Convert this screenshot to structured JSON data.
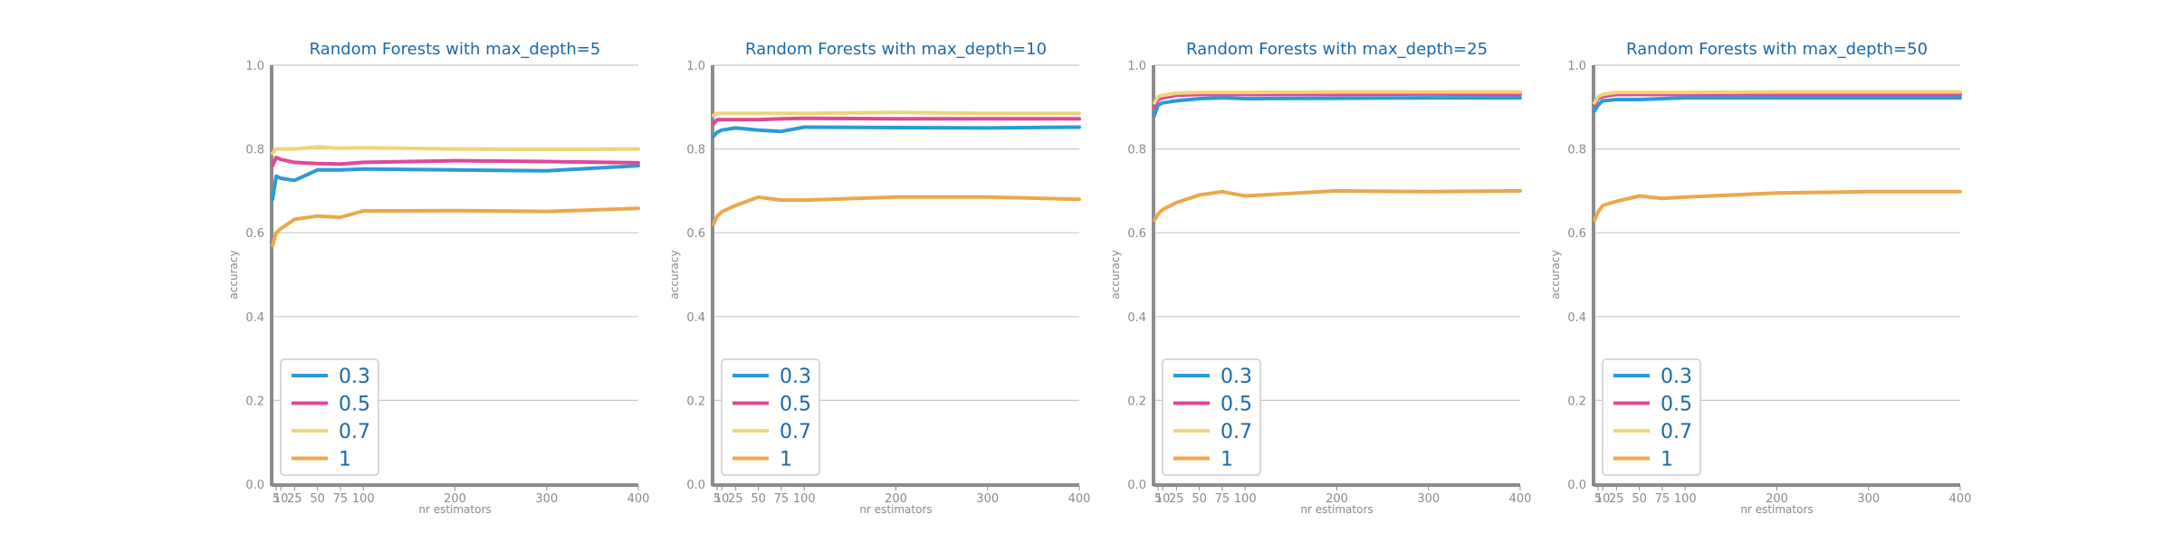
{
  "colors": {
    "0.3": "#2a9bd6",
    "0.5": "#e0489a",
    "0.7": "#ecd57a",
    "1": "#eba84a"
  },
  "chart_data": [
    {
      "type": "line",
      "title": "Random Forests with max_depth=5",
      "xlabel": "nr estimators",
      "ylabel": "accuracy",
      "xlim": [
        0,
        400
      ],
      "ylim": [
        0.0,
        1.0
      ],
      "xticks": [
        5,
        10,
        25,
        50,
        75,
        100,
        200,
        300,
        400
      ],
      "xtick_labels": [
        "5",
        "10",
        "25",
        "50",
        "75",
        "100",
        "200",
        "300",
        "400"
      ],
      "yticks": [
        "0.0",
        "0.2",
        "0.4",
        "0.6",
        "0.8",
        "1.0"
      ],
      "grid": "y",
      "legend": "lower-left",
      "x": [
        1,
        5,
        10,
        25,
        50,
        75,
        100,
        200,
        300,
        400
      ],
      "series": [
        {
          "name": "0.3",
          "values": [
            0.68,
            0.735,
            0.73,
            0.725,
            0.75,
            0.75,
            0.752,
            0.75,
            0.748,
            0.76
          ]
        },
        {
          "name": "0.5",
          "values": [
            0.76,
            0.78,
            0.775,
            0.768,
            0.765,
            0.764,
            0.768,
            0.772,
            0.77,
            0.767
          ]
        },
        {
          "name": "0.7",
          "values": [
            0.79,
            0.8,
            0.8,
            0.8,
            0.805,
            0.802,
            0.803,
            0.8,
            0.799,
            0.8
          ]
        },
        {
          "name": "1",
          "values": [
            0.57,
            0.6,
            0.61,
            0.632,
            0.64,
            0.637,
            0.652,
            0.653,
            0.651,
            0.658
          ]
        }
      ]
    },
    {
      "type": "line",
      "title": "Random Forests with max_depth=10",
      "xlabel": "nr estimators",
      "ylabel": "accuracy",
      "xlim": [
        0,
        400
      ],
      "ylim": [
        0.0,
        1.0
      ],
      "xticks": [
        5,
        10,
        25,
        50,
        75,
        100,
        200,
        300,
        400
      ],
      "xtick_labels": [
        "5",
        "10",
        "25",
        "50",
        "75",
        "100",
        "200",
        "300",
        "400"
      ],
      "yticks": [
        "0.0",
        "0.2",
        "0.4",
        "0.6",
        "0.8",
        "1.0"
      ],
      "grid": "y",
      "legend": "lower-left",
      "x": [
        1,
        5,
        10,
        25,
        50,
        75,
        100,
        200,
        300,
        400
      ],
      "series": [
        {
          "name": "0.3",
          "values": [
            0.83,
            0.84,
            0.845,
            0.85,
            0.845,
            0.842,
            0.852,
            0.851,
            0.85,
            0.852
          ]
        },
        {
          "name": "0.5",
          "values": [
            0.86,
            0.87,
            0.87,
            0.87,
            0.87,
            0.872,
            0.873,
            0.872,
            0.872,
            0.872
          ]
        },
        {
          "name": "0.7",
          "values": [
            0.88,
            0.885,
            0.885,
            0.885,
            0.885,
            0.885,
            0.885,
            0.887,
            0.885,
            0.885
          ]
        },
        {
          "name": "1",
          "values": [
            0.62,
            0.64,
            0.65,
            0.665,
            0.685,
            0.678,
            0.678,
            0.685,
            0.685,
            0.68
          ]
        }
      ]
    },
    {
      "type": "line",
      "title": "Random Forests with max_depth=25",
      "xlabel": "nr estimators",
      "ylabel": "accuracy",
      "xlim": [
        0,
        400
      ],
      "ylim": [
        0.0,
        1.0
      ],
      "xticks": [
        5,
        10,
        25,
        50,
        75,
        100,
        200,
        300,
        400
      ],
      "xtick_labels": [
        "5",
        "10",
        "25",
        "50",
        "75",
        "100",
        "200",
        "300",
        "400"
      ],
      "yticks": [
        "0.0",
        "0.2",
        "0.4",
        "0.6",
        "0.8",
        "1.0"
      ],
      "grid": "y",
      "legend": "lower-left",
      "x": [
        1,
        5,
        10,
        25,
        50,
        75,
        100,
        200,
        300,
        400
      ],
      "series": [
        {
          "name": "0.3",
          "values": [
            0.88,
            0.905,
            0.91,
            0.915,
            0.92,
            0.922,
            0.92,
            0.921,
            0.922,
            0.922
          ]
        },
        {
          "name": "0.5",
          "values": [
            0.9,
            0.918,
            0.922,
            0.928,
            0.93,
            0.93,
            0.93,
            0.93,
            0.931,
            0.93
          ]
        },
        {
          "name": "0.7",
          "values": [
            0.91,
            0.925,
            0.928,
            0.933,
            0.935,
            0.935,
            0.935,
            0.936,
            0.936,
            0.936
          ]
        },
        {
          "name": "1",
          "values": [
            0.63,
            0.645,
            0.655,
            0.672,
            0.69,
            0.698,
            0.688,
            0.7,
            0.698,
            0.7
          ]
        }
      ]
    },
    {
      "type": "line",
      "title": "Random Forests with max_depth=50",
      "xlabel": "nr estimators",
      "ylabel": "accuracy",
      "xlim": [
        0,
        400
      ],
      "ylim": [
        0.0,
        1.0
      ],
      "xticks": [
        5,
        10,
        25,
        50,
        75,
        100,
        200,
        300,
        400
      ],
      "xtick_labels": [
        "5",
        "10",
        "25",
        "50",
        "75",
        "100",
        "200",
        "300",
        "400"
      ],
      "yticks": [
        "0.0",
        "0.2",
        "0.4",
        "0.6",
        "0.8",
        "1.0"
      ],
      "grid": "y",
      "legend": "lower-left",
      "x": [
        1,
        5,
        10,
        25,
        50,
        75,
        100,
        200,
        300,
        400
      ],
      "series": [
        {
          "name": "0.3",
          "values": [
            0.89,
            0.905,
            0.915,
            0.918,
            0.918,
            0.92,
            0.922,
            0.922,
            0.922,
            0.922
          ]
        },
        {
          "name": "0.5",
          "values": [
            0.905,
            0.92,
            0.925,
            0.93,
            0.93,
            0.93,
            0.93,
            0.93,
            0.93,
            0.93
          ]
        },
        {
          "name": "0.7",
          "values": [
            0.91,
            0.925,
            0.93,
            0.935,
            0.935,
            0.935,
            0.935,
            0.936,
            0.936,
            0.936
          ]
        },
        {
          "name": "1",
          "values": [
            0.63,
            0.65,
            0.665,
            0.675,
            0.688,
            0.682,
            0.685,
            0.695,
            0.698,
            0.698
          ]
        }
      ]
    }
  ]
}
